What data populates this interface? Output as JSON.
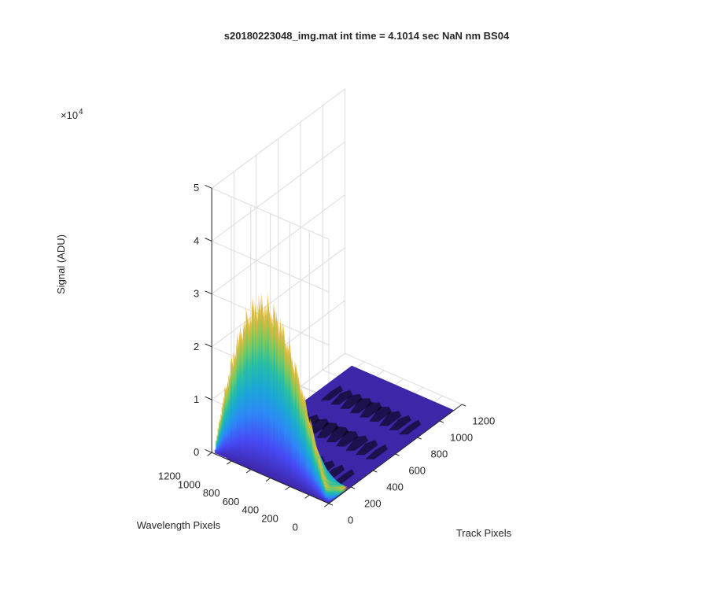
{
  "chart_data": {
    "type": "surface",
    "title": "s20180223048_img.mat int time = 4.1014 sec  NaN nm BS04",
    "xlabel": "Track Pixels",
    "ylabel": "Wavelength Pixels",
    "zlabel": "Signal (ADU)",
    "z_exponent_label": "×10",
    "z_exponent_power": "4",
    "xlim": [
      0,
      1200
    ],
    "ylim": [
      0,
      1200
    ],
    "zlim": [
      0,
      50000
    ],
    "x_ticks": [
      "0",
      "200",
      "400",
      "600",
      "800",
      "1000",
      "1200"
    ],
    "y_ticks": [
      "0",
      "200",
      "400",
      "600",
      "800",
      "1000",
      "1200"
    ],
    "z_ticks": [
      "0",
      "1",
      "2",
      "3",
      "4",
      "5"
    ],
    "grid": true,
    "colormap": [
      "#3e26a8",
      "#4749f5",
      "#2e87f7",
      "#1aa8d5",
      "#28bfa1",
      "#7bc95f",
      "#d0ba3c",
      "#fcbc3e",
      "#f9fb15"
    ],
    "peaks": [
      {
        "track_center": 0,
        "wavelength_range": [
          0,
          1200
        ],
        "max_signal": 45000
      },
      {
        "track_center": 250,
        "wavelength_range": [
          0,
          1000
        ],
        "max_signal": 1500
      },
      {
        "track_center": 550,
        "wavelength_range": [
          0,
          1000
        ],
        "max_signal": 2000
      },
      {
        "track_center": 850,
        "wavelength_range": [
          0,
          1000
        ],
        "max_signal": 1800
      }
    ]
  }
}
